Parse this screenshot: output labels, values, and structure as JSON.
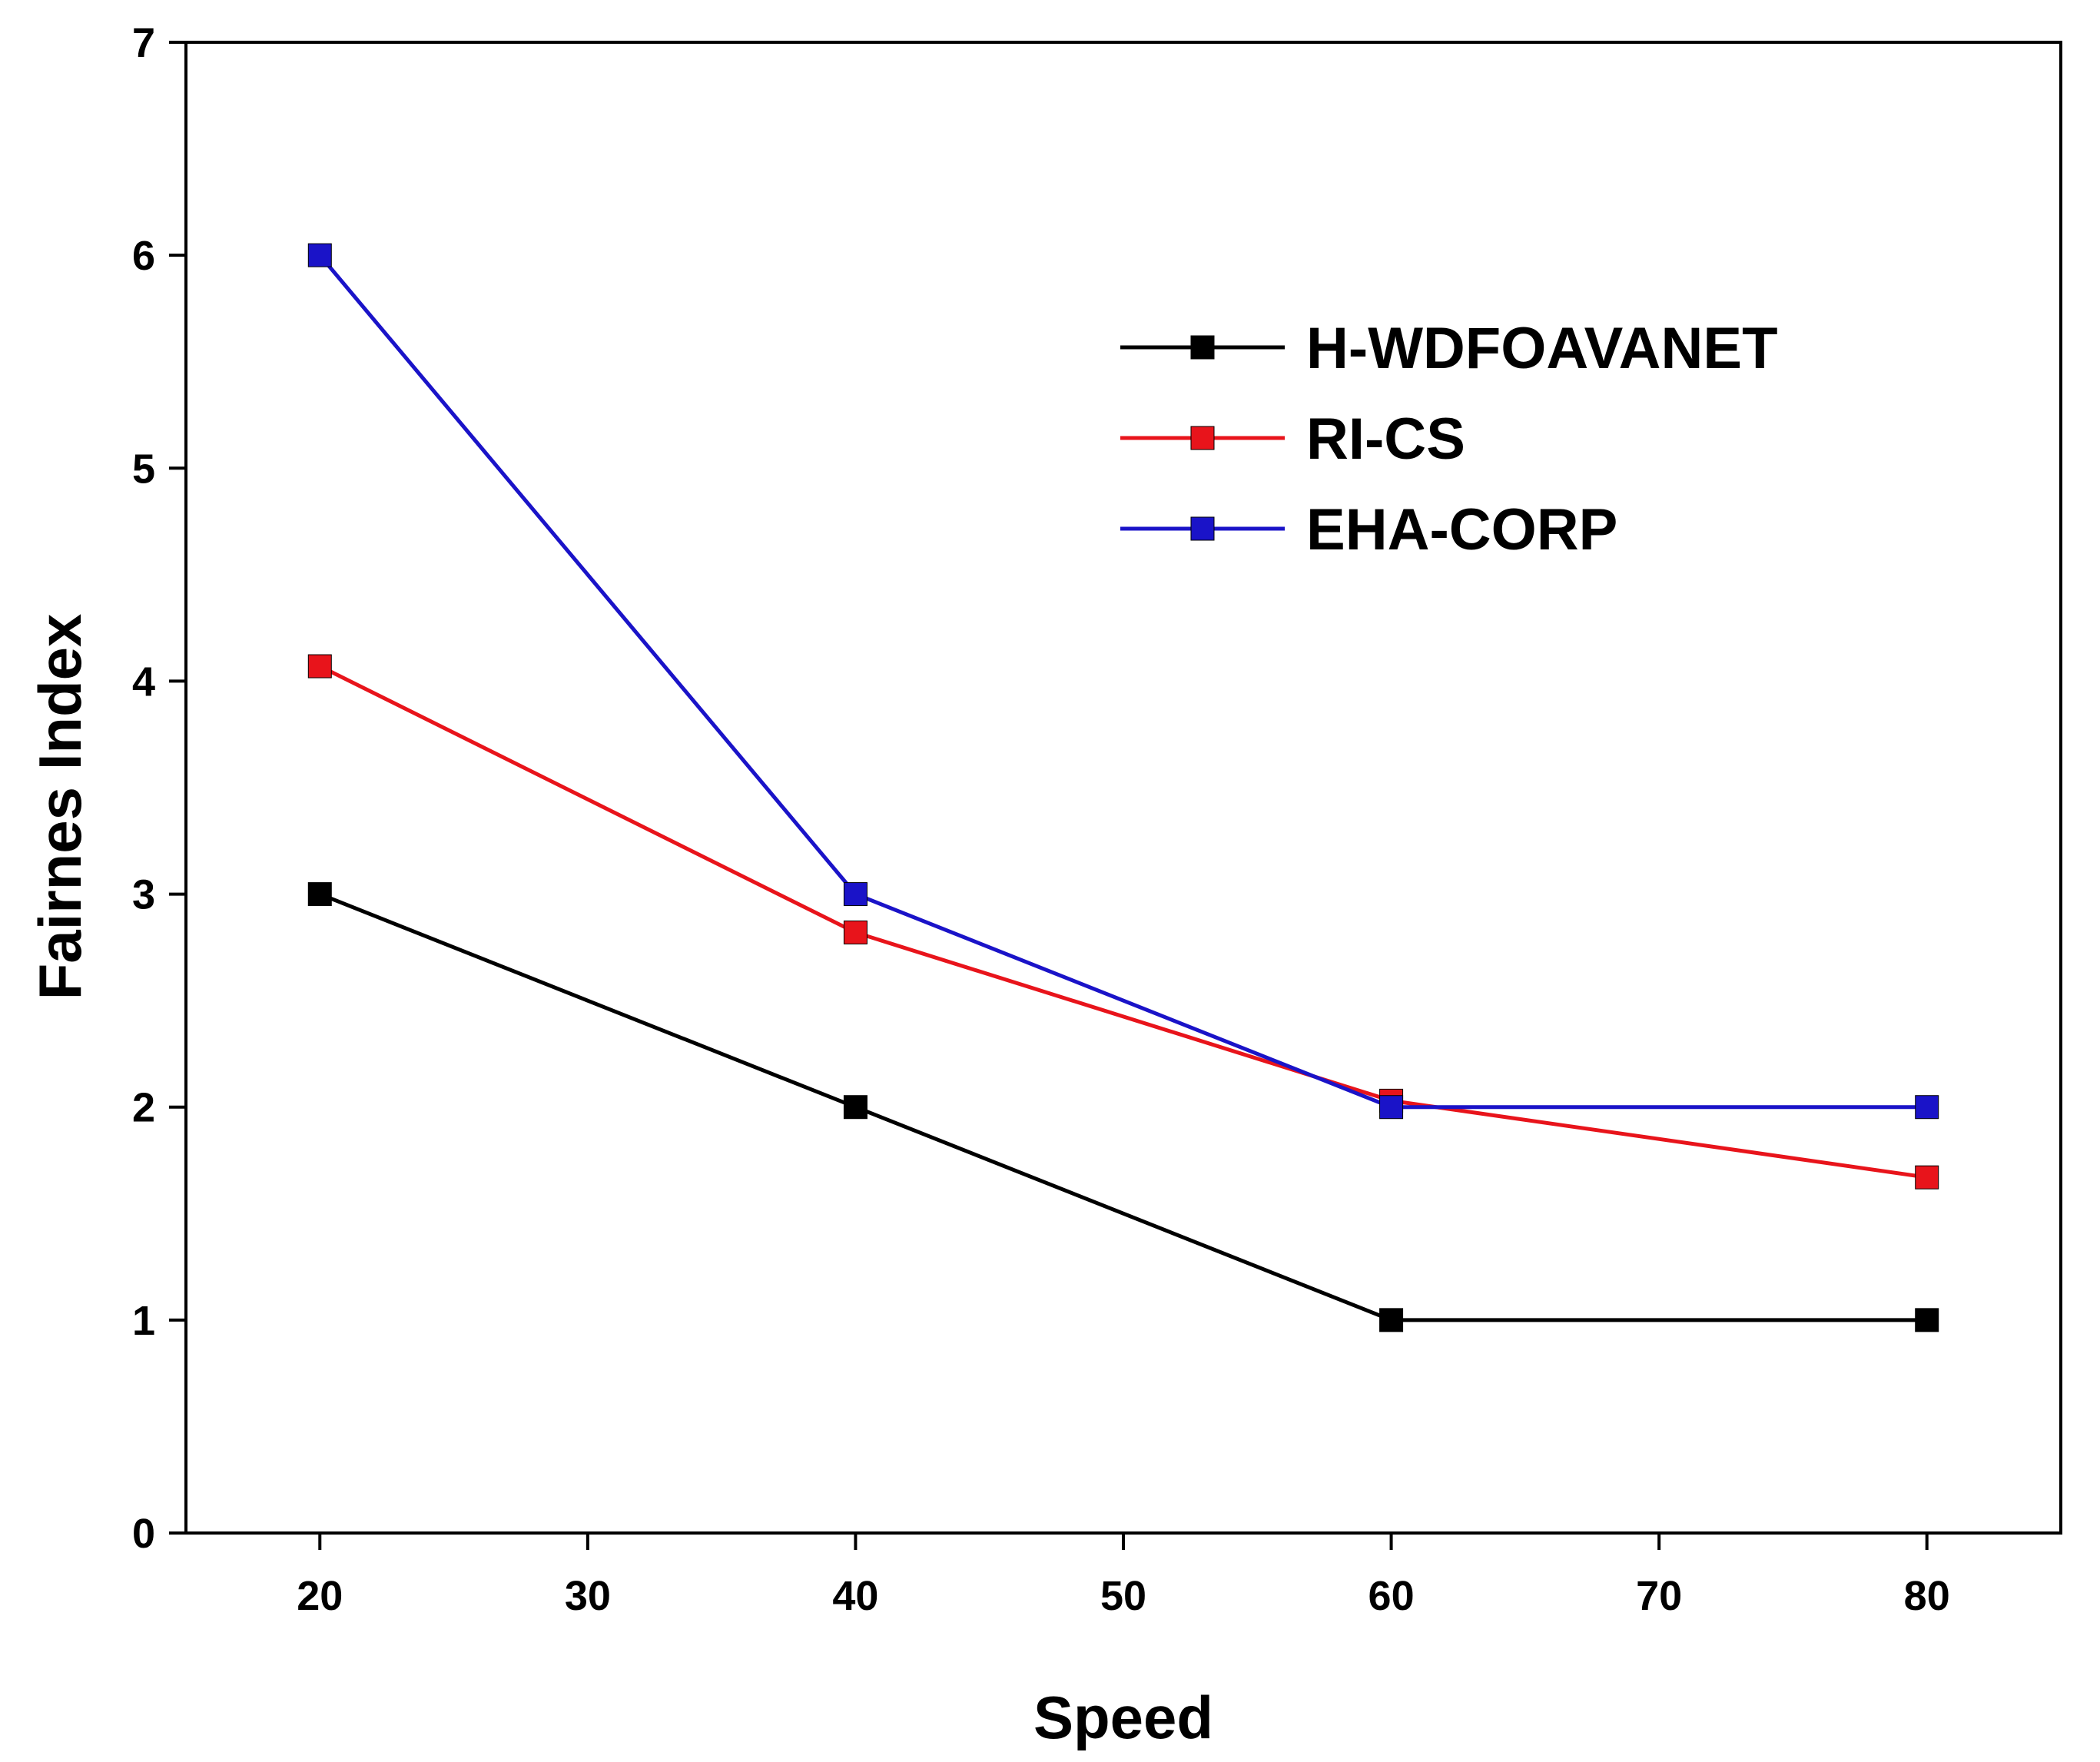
{
  "chart_data": {
    "type": "line",
    "xlabel": "Speed",
    "ylabel": "Fairnes Index",
    "xlim": [
      15,
      85
    ],
    "ylim": [
      0,
      7
    ],
    "xticks": [
      20,
      30,
      40,
      50,
      60,
      70,
      80
    ],
    "yticks": [
      0,
      1,
      2,
      3,
      4,
      5,
      6,
      7
    ],
    "x": [
      20,
      40,
      60,
      80
    ],
    "legend_position": "top-right",
    "marker": "square",
    "series": [
      {
        "name": "H-WDFOAVANET",
        "color": "#000000",
        "values": [
          3,
          2,
          1,
          1
        ]
      },
      {
        "name": "RI-CS",
        "color": "#e8141b",
        "values": [
          4.07,
          2.82,
          2.03,
          1.67
        ]
      },
      {
        "name": "EHA-CORP",
        "color": "#1a13c8",
        "values": [
          6,
          3,
          2,
          2
        ]
      }
    ]
  }
}
